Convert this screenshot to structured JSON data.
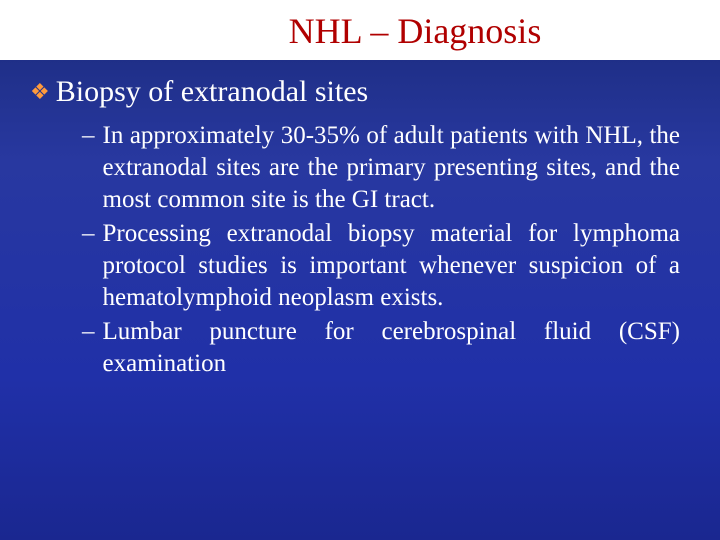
{
  "slide": {
    "title": "NHL – Diagnosis",
    "heading": "Biopsy of extranodal sites",
    "bullets": [
      "In approximately 30-35% of adult patients with NHL, the extranodal sites are the primary presenting sites, and the most common site is the GI tract.",
      "Processing extranodal biopsy material for lymphoma protocol studies is important whenever suspicion of a hematolymphoid neoplasm exists.",
      "Lumbar puncture for cerebrospinal fluid (CSF) examination"
    ],
    "colors": {
      "title_color": "#b00000",
      "title_bg": "#ffffff",
      "body_text": "#ffffff",
      "bullet_icon": "#ff9a3c",
      "bg_top": "#1a2a7a",
      "bg_bottom": "#1a2790"
    },
    "fonts": {
      "title_size_pt": 28,
      "heading_size_pt": 22,
      "body_size_pt": 19,
      "family": "Times New Roman"
    }
  }
}
